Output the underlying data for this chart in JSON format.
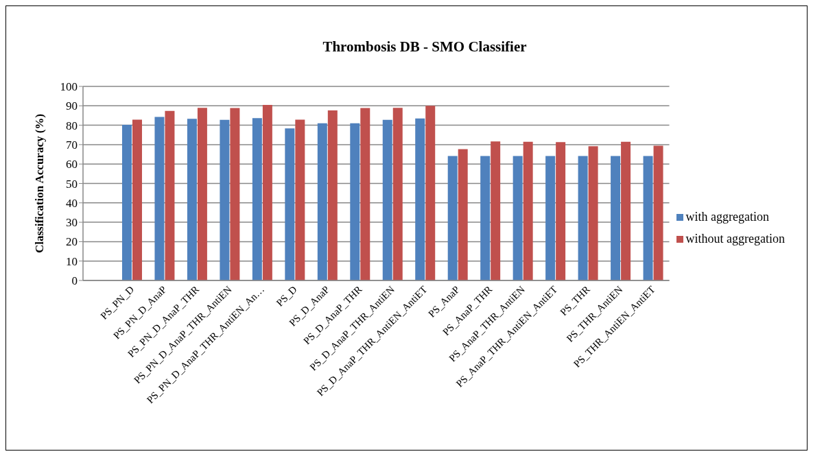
{
  "chart_data": {
    "type": "bar",
    "title": "Thrombosis DB - SMO Classifier",
    "ylabel": "Classification Accuracy (%)",
    "categories": [
      null,
      "PS_PN_D",
      "PS_PN_D_AnaP",
      "PS_PN_D_AnaP_THR",
      "PS_PN_D_AnaP_THR_AntiEN",
      "PS_PN_D_AnaP_THR_AntiEN_An…",
      "PS_D",
      "PS_D_AnaP",
      "PS_D_AnaP_THR",
      "PS_D_AnaP_THR_AntiEN",
      "PS_D_AnaP_THR_AntiEN_AntiET",
      "PS_AnaP",
      "PS_AnaP_THR",
      "PS_AnaP_THR_AntiEN",
      "PS_AnaP_THR_AntiEN_AntiET",
      "PS_THR",
      "PS_THR_AntiEN",
      "PS_THR_AntiEN_AntiET"
    ],
    "series": [
      {
        "name": "with aggregation",
        "color": "#4f81bd",
        "values": [
          null,
          80.2,
          84.3,
          83.3,
          82.8,
          83.7,
          78.4,
          81.0,
          81.0,
          82.8,
          83.5,
          64.1,
          64.1,
          64.1,
          64.1,
          64.1,
          64.1,
          64.1
        ]
      },
      {
        "name": "without aggregation",
        "color": "#c0504d",
        "values": [
          null,
          82.9,
          87.4,
          89.0,
          88.9,
          90.5,
          82.9,
          87.6,
          88.9,
          89.0,
          90.0,
          67.7,
          71.6,
          71.5,
          71.3,
          69.2,
          71.5,
          69.4
        ]
      }
    ],
    "ylim": [
      0,
      100
    ],
    "yticks": [
      0,
      10,
      20,
      30,
      40,
      50,
      60,
      70,
      80,
      90,
      100
    ],
    "grid": "y",
    "legend": "right"
  }
}
